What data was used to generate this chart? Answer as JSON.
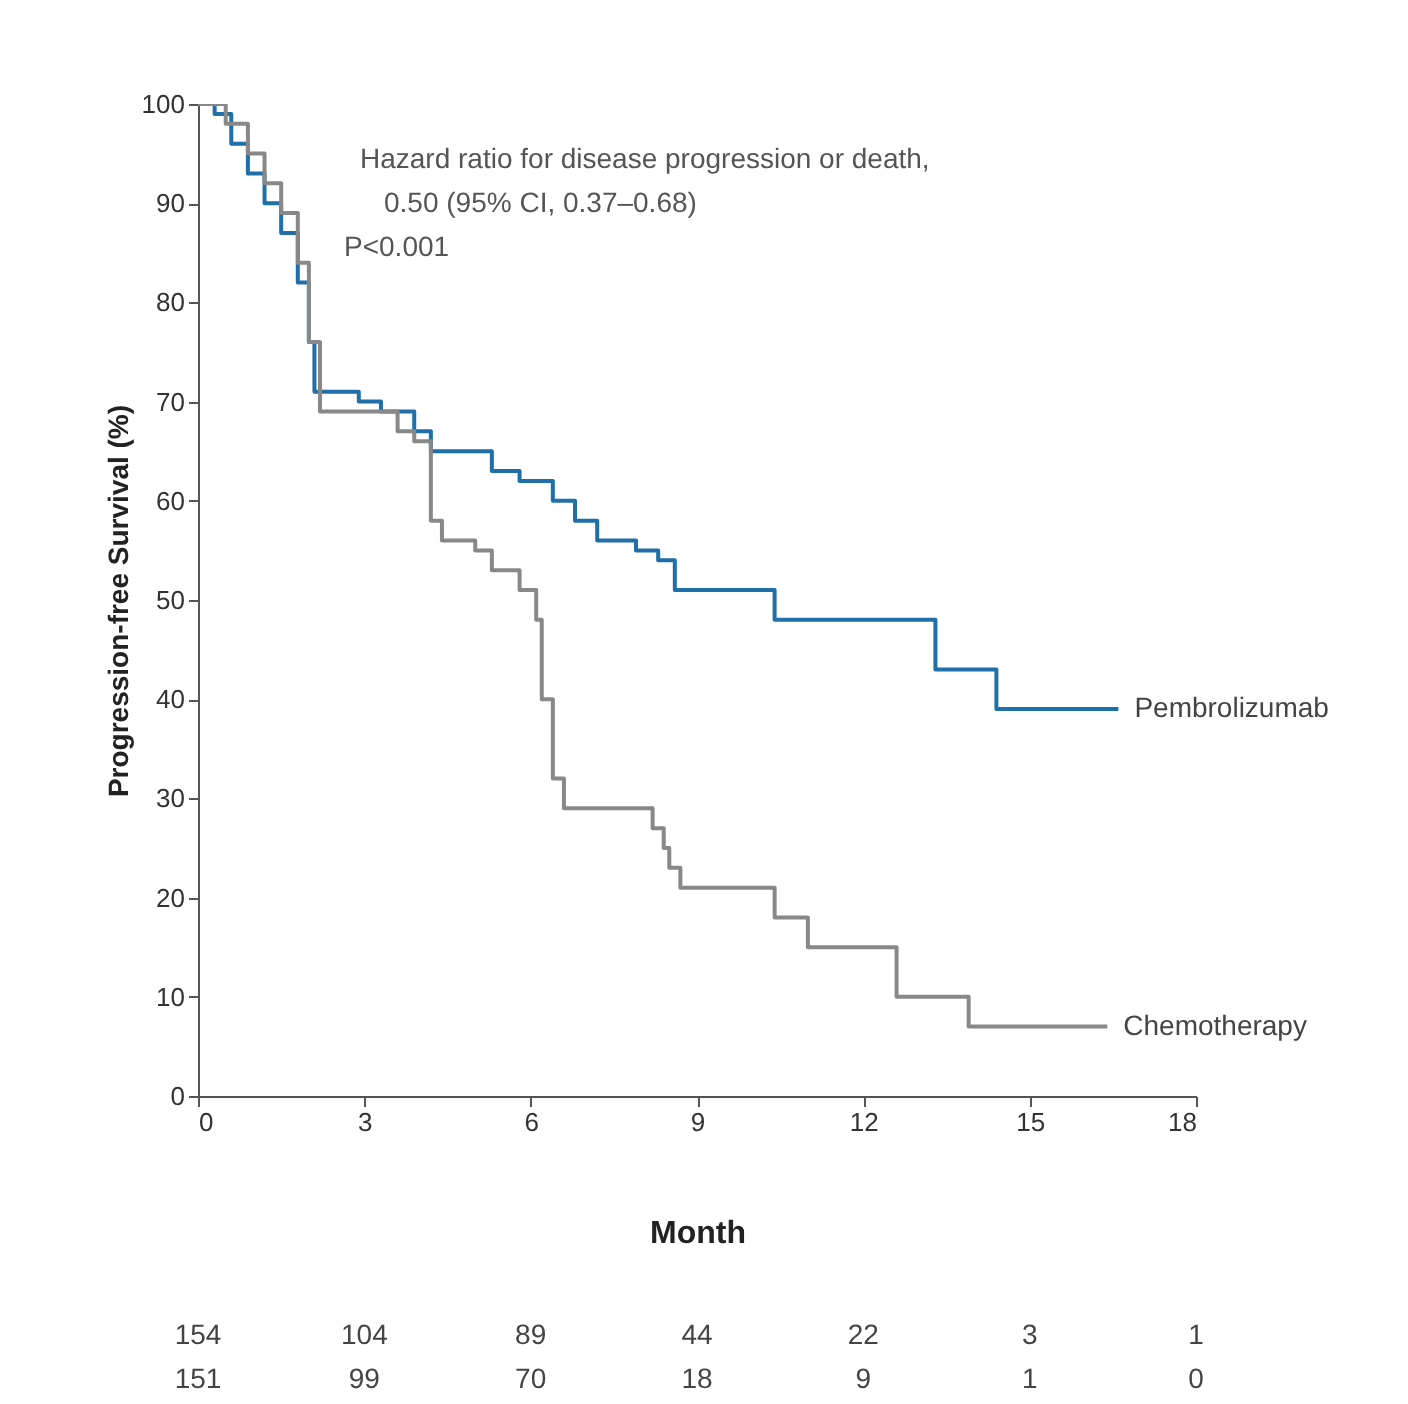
{
  "chart_data": {
    "type": "step",
    "xlabel": "Month",
    "ylabel": "Progression-free Survival (%)",
    "xlim": [
      0,
      18
    ],
    "xticks": [
      0,
      3,
      6,
      9,
      12,
      15,
      18
    ],
    "ylim": [
      0,
      100
    ],
    "yticks": [
      0,
      10,
      20,
      30,
      40,
      50,
      60,
      70,
      80,
      90,
      100
    ],
    "grid": false,
    "line_style": "solid",
    "marker": "none",
    "annotations": [
      "Hazard ratio for disease progression or death,",
      "0.50 (95% CI, 0.37–0.68)",
      "P<0.001",
      "154 104 89 44 22 3 1",
      "151 99 70 18 9 1 0"
    ],
    "series": [
      {
        "name": "Pembrolizumab",
        "color": "#1f6fa8",
        "x": [
          0,
          0.3,
          0.6,
          0.9,
          1.2,
          1.5,
          1.8,
          2.0,
          2.1,
          2.6,
          2.9,
          3.3,
          3.9,
          4.2,
          5.0,
          5.3,
          5.8,
          6.4,
          6.8,
          7.2,
          7.9,
          8.3,
          8.6,
          10.4,
          13.3,
          14.4,
          16.6
        ],
        "values": [
          100,
          99,
          96,
          93,
          90,
          87,
          82,
          76,
          71,
          71,
          70,
          69,
          67,
          65,
          65,
          63,
          62,
          60,
          58,
          56,
          55,
          54,
          51,
          48,
          43,
          39,
          39
        ]
      },
      {
        "name": "Chemotherapy",
        "color": "#888888",
        "x": [
          0,
          0.5,
          0.9,
          1.2,
          1.5,
          1.8,
          2.0,
          2.2,
          3.6,
          3.9,
          4.0,
          4.2,
          4.4,
          5.0,
          5.3,
          5.8,
          6.1,
          6.2,
          6.4,
          6.6,
          8.0,
          8.2,
          8.4,
          8.5,
          8.7,
          10.4,
          11.0,
          12.6,
          13.9,
          16.4
        ],
        "values": [
          100,
          98,
          95,
          92,
          89,
          84,
          76,
          69,
          67,
          66,
          66,
          58,
          56,
          55,
          53,
          51,
          48,
          40,
          32,
          29,
          29,
          27,
          25,
          23,
          21,
          18,
          15,
          10,
          7,
          7
        ]
      }
    ]
  }
}
